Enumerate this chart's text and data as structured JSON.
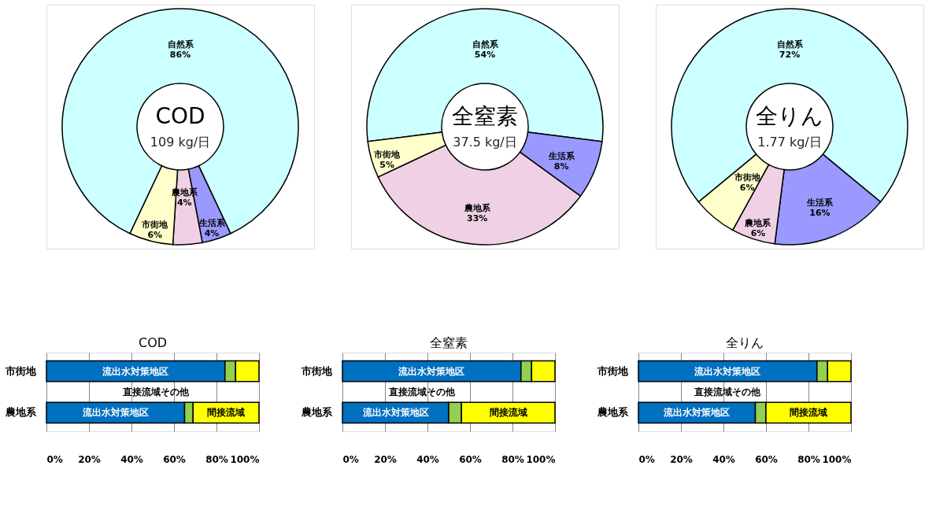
{
  "chart_data": [
    {
      "type": "donut",
      "title": "COD",
      "subtitle": "109 kg/日",
      "categories": [
        "自然系",
        "生活系",
        "農地系",
        "市街地"
      ],
      "values": [
        86,
        4,
        4,
        6
      ],
      "colors": [
        "#ccffff",
        "#9999ff",
        "#f0d0e4",
        "#ffffcc"
      ],
      "value_labels": [
        "86%",
        "4%",
        "4%",
        "6%"
      ]
    },
    {
      "type": "donut",
      "title": "全窒素",
      "subtitle": "37.5 kg/日",
      "categories": [
        "自然系",
        "生活系",
        "農地系",
        "市街地"
      ],
      "values": [
        54,
        8,
        33,
        5
      ],
      "colors": [
        "#ccffff",
        "#9999ff",
        "#f0d0e4",
        "#ffffcc"
      ],
      "value_labels": [
        "54%",
        "8%",
        "33%",
        "5%"
      ]
    },
    {
      "type": "donut",
      "title": "全りん",
      "subtitle": "1.77 kg/日",
      "categories": [
        "自然系",
        "生活系",
        "農地系",
        "市街地"
      ],
      "values": [
        72,
        16,
        6,
        6
      ],
      "colors": [
        "#ccffff",
        "#9999ff",
        "#f0d0e4",
        "#ffffcc"
      ],
      "value_labels": [
        "72%",
        "16%",
        "6%",
        "6%"
      ]
    },
    {
      "type": "bar",
      "orientation": "horizontal",
      "stacked": true,
      "title": "COD",
      "categories": [
        "市街地",
        "農地系"
      ],
      "series": [
        {
          "name": "流出水対策地区",
          "color": "#0070c0",
          "values": [
            84,
            65
          ]
        },
        {
          "name": "直接流域その他",
          "color": "#92d050",
          "values": [
            5,
            4
          ]
        },
        {
          "name": "間接流域",
          "color": "#ffff00",
          "values": [
            11,
            31
          ]
        }
      ],
      "xlim": [
        0,
        100
      ],
      "xticks": [
        {
          "value": 0,
          "label": "0%"
        },
        {
          "value": 20,
          "label": "20%"
        },
        {
          "value": 40,
          "label": "40%"
        },
        {
          "value": 60,
          "label": "60%"
        },
        {
          "value": 80,
          "label": "80%"
        },
        {
          "value": 100,
          "label": "100%"
        }
      ],
      "grid": "x"
    },
    {
      "type": "bar",
      "orientation": "horizontal",
      "stacked": true,
      "title": "全窒素",
      "categories": [
        "市街地",
        "農地系"
      ],
      "series": [
        {
          "name": "流出水対策地区",
          "color": "#0070c0",
          "values": [
            84,
            50
          ]
        },
        {
          "name": "直接流域その他",
          "color": "#92d050",
          "values": [
            5,
            6
          ]
        },
        {
          "name": "間接流域",
          "color": "#ffff00",
          "values": [
            11,
            44
          ]
        }
      ],
      "xlim": [
        0,
        100
      ],
      "xticks": [
        {
          "value": 0,
          "label": "0%"
        },
        {
          "value": 20,
          "label": "20%"
        },
        {
          "value": 40,
          "label": "40%"
        },
        {
          "value": 60,
          "label": "60%"
        },
        {
          "value": 80,
          "label": "80%"
        },
        {
          "value": 100,
          "label": "100%"
        }
      ],
      "grid": "x"
    },
    {
      "type": "bar",
      "orientation": "horizontal",
      "stacked": true,
      "title": "全りん",
      "categories": [
        "市街地",
        "農地系"
      ],
      "series": [
        {
          "name": "流出水対策地区",
          "color": "#0070c0",
          "values": [
            84,
            55
          ]
        },
        {
          "name": "直接流域その他",
          "color": "#92d050",
          "values": [
            5,
            5
          ]
        },
        {
          "name": "間接流域",
          "color": "#ffff00",
          "values": [
            11,
            40
          ]
        }
      ],
      "xlim": [
        0,
        100
      ],
      "xticks": [
        {
          "value": 0,
          "label": "0%"
        },
        {
          "value": 20,
          "label": "20%"
        },
        {
          "value": 40,
          "label": "40%"
        },
        {
          "value": 60,
          "label": "60%"
        },
        {
          "value": 80,
          "label": "80%"
        },
        {
          "value": 100,
          "label": "100%"
        }
      ],
      "grid": "x"
    }
  ]
}
